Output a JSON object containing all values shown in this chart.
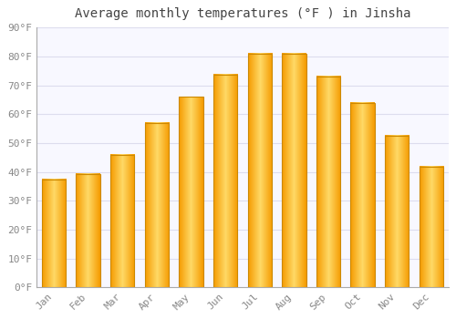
{
  "title": "Average monthly temperatures (°F ) in Jinsha",
  "months": [
    "Jan",
    "Feb",
    "Mar",
    "Apr",
    "May",
    "Jun",
    "Jul",
    "Aug",
    "Sep",
    "Oct",
    "Nov",
    "Dec"
  ],
  "values": [
    37.4,
    39.2,
    46.0,
    57.0,
    66.0,
    73.8,
    81.0,
    81.0,
    73.0,
    64.0,
    52.7,
    41.7
  ],
  "bar_color_main": "#FFAA00",
  "bar_color_light": "#FFD966",
  "bar_edge_color": "#CC8800",
  "background_color": "#FFFFFF",
  "plot_bg_color": "#F8F8FF",
  "grid_color": "#DDDDEE",
  "ylim": [
    0,
    90
  ],
  "yticks": [
    0,
    10,
    20,
    30,
    40,
    50,
    60,
    70,
    80,
    90
  ],
  "ytick_labels": [
    "0°F",
    "10°F",
    "20°F",
    "30°F",
    "40°F",
    "50°F",
    "60°F",
    "70°F",
    "80°F",
    "90°F"
  ],
  "title_fontsize": 10,
  "tick_fontsize": 8,
  "bar_width": 0.7
}
